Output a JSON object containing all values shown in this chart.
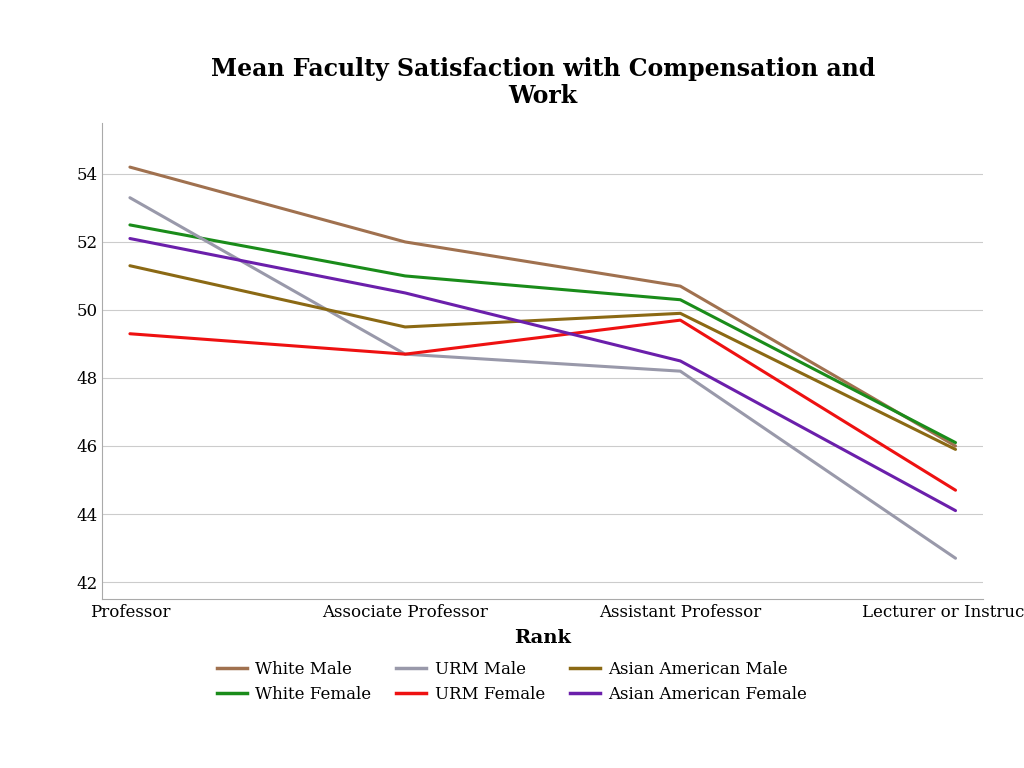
{
  "title": "Mean Faculty Satisfaction with Compensation and\nWork",
  "xlabel": "Rank",
  "categories": [
    "Professor",
    "Associate Professor",
    "Assistant Professor",
    "Lecturer or Instructor"
  ],
  "series_order": [
    "White Male",
    "White Female",
    "URM Male",
    "URM Female",
    "Asian American Male",
    "Asian American Female"
  ],
  "series": {
    "White Male": [
      54.2,
      52.0,
      50.7,
      46.0
    ],
    "White Female": [
      52.5,
      51.0,
      50.3,
      46.1
    ],
    "URM Male": [
      53.3,
      48.7,
      48.2,
      42.7
    ],
    "URM Female": [
      49.3,
      48.7,
      49.7,
      44.7
    ],
    "Asian American Male": [
      51.3,
      49.5,
      49.9,
      45.9
    ],
    "Asian American Female": [
      52.1,
      50.5,
      48.5,
      44.1
    ]
  },
  "colors": {
    "White Male": "#A0714F",
    "White Female": "#1A8C1A",
    "URM Male": "#9999AA",
    "URM Female": "#EE1111",
    "Asian American Male": "#8B6914",
    "Asian American Female": "#6B1FAB"
  },
  "ylim": [
    41.5,
    55.5
  ],
  "yticks": [
    42,
    44,
    46,
    48,
    50,
    52,
    54
  ],
  "background_color": "#FFFFFF",
  "plot_bg_color": "#FFFFFF",
  "grid_color": "#CCCCCC",
  "title_fontsize": 17,
  "label_fontsize": 14,
  "tick_fontsize": 12,
  "legend_fontsize": 12,
  "linewidth": 2.2,
  "footer_color": "#7D9FA5",
  "outer_box_color": "#CCCCCC"
}
